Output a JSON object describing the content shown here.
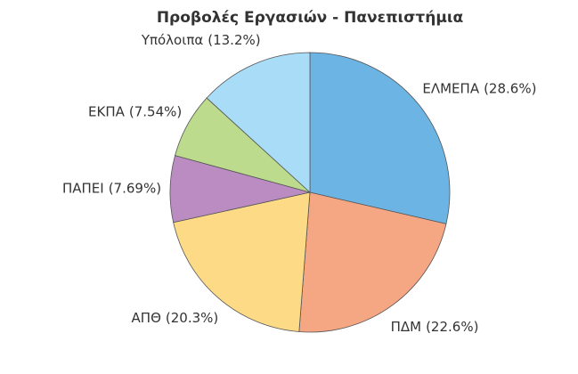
{
  "chart_data": {
    "type": "pie",
    "title": "Προβολές Εργασιών - Πανεπιστήμια",
    "categories": [
      "ΕΛΜΕΠΑ",
      "ΠΔΜ",
      "ΑΠΘ",
      "ΠΑΠΕΙ",
      "ΕΚΠΑ",
      "Υπόλοιπα"
    ],
    "values": [
      28.6,
      22.6,
      20.3,
      7.69,
      7.54,
      13.2
    ],
    "value_labels": [
      "(28.6%)",
      "(22.6%)",
      "(20.3%)",
      "(7.69%)",
      "(7.54%)",
      "(13.2%)"
    ],
    "colors": [
      "#6cb4e4",
      "#f5a683",
      "#fdda86",
      "#bb8cc1",
      "#bddb8d",
      "#a9dcf7"
    ]
  }
}
